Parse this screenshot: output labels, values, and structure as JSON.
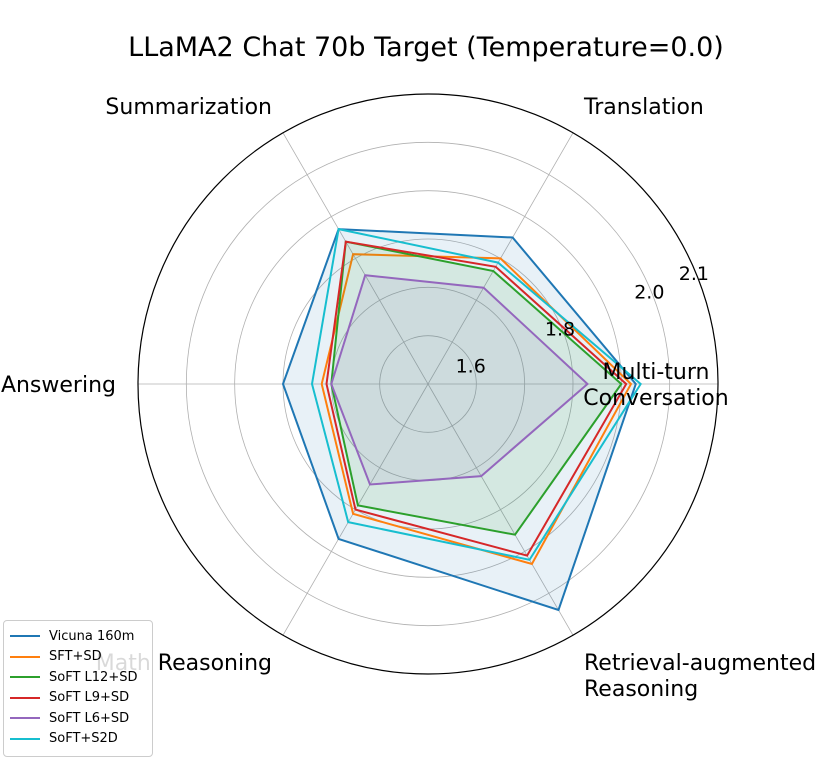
{
  "chart_data": {
    "type": "radar",
    "title": "LLaMA2 Chat 70b Target (Temperature=0.0)",
    "axes": [
      {
        "label": [
          "Multi-turn",
          "Conversation"
        ]
      },
      {
        "label": [
          "Translation"
        ]
      },
      {
        "label": [
          "Summarization"
        ]
      },
      {
        "label": [
          "Question Answering"
        ]
      },
      {
        "label": [
          "Math Reasoning"
        ]
      },
      {
        "label": [
          "Retrieval-augmented",
          "Reasoning"
        ]
      }
    ],
    "rlim": [
      1.5,
      2.1
    ],
    "ticks": [
      1.6,
      1.8,
      2.0,
      2.1
    ],
    "tick_labels": [
      "1.6",
      "1.8",
      "2.0",
      "2.1"
    ],
    "grid": true,
    "legend_position": "lower-left",
    "series": [
      {
        "name": "Vicuna 160m",
        "color": "#1f77b4",
        "values": [
          1.93,
          1.85,
          1.87,
          1.8,
          1.87,
          2.04
        ],
        "fill": true
      },
      {
        "name": "SFT+SD",
        "color": "#ff7f0e",
        "values": [
          1.92,
          1.8,
          1.81,
          1.72,
          1.81,
          1.93
        ],
        "fill": false
      },
      {
        "name": "SoFT L12+SD",
        "color": "#2ca02c",
        "values": [
          1.9,
          1.77,
          1.84,
          1.7,
          1.79,
          1.86
        ],
        "fill": true
      },
      {
        "name": "SoFT L9+SD",
        "color": "#d62728",
        "values": [
          1.91,
          1.78,
          1.84,
          1.71,
          1.8,
          1.91
        ],
        "fill": false
      },
      {
        "name": "SoFT L6+SD",
        "color": "#9467bd",
        "values": [
          1.83,
          1.73,
          1.76,
          1.7,
          1.74,
          1.72
        ],
        "fill": true
      },
      {
        "name": "SoFT+S2D",
        "color": "#17becf",
        "values": [
          1.94,
          1.79,
          1.87,
          1.74,
          1.83,
          1.92
        ],
        "fill": false
      }
    ]
  }
}
